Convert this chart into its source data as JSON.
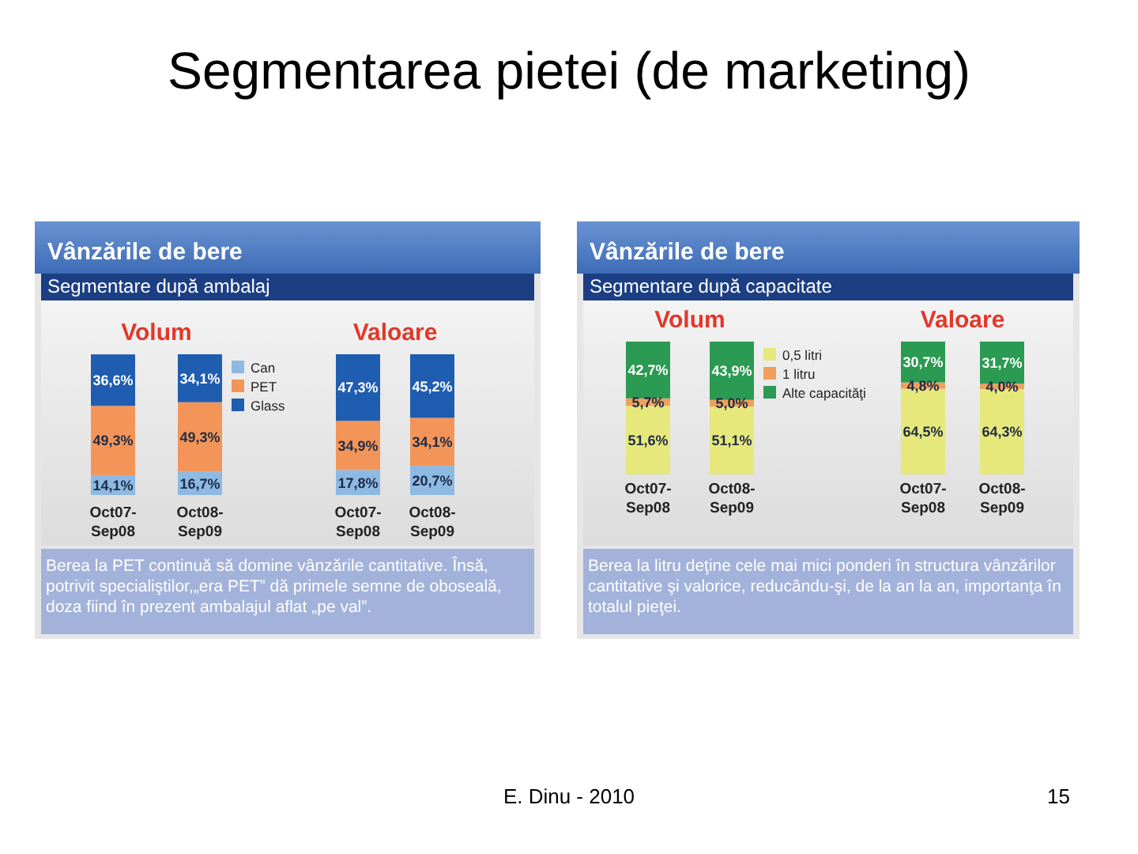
{
  "chart_data": [
    {
      "type": "bar",
      "stacked": true,
      "title": "Volum",
      "categories": [
        "Oct07-Sep08",
        "Oct08-Sep09"
      ],
      "series": [
        {
          "name": "Can",
          "color": "#8db9e3",
          "values": [
            14.1,
            16.7
          ],
          "value_labels": [
            "14,1%",
            "16,7%"
          ]
        },
        {
          "name": "PET",
          "color": "#f39558",
          "values": [
            49.3,
            49.3
          ],
          "value_labels": [
            "49,3%",
            "49,3%"
          ]
        },
        {
          "name": "Glass",
          "color": "#1f5db0",
          "values": [
            36.6,
            34.1
          ],
          "value_labels": [
            "36,6%",
            "34,1%"
          ]
        }
      ],
      "legend": "right",
      "tick_labels": "x",
      "annotations": [
        "Segmentarea pietei (de marketing)",
        "Vânzările de bere",
        "Segmentare după ambalaj"
      ]
    },
    {
      "type": "bar",
      "stacked": true,
      "title": "Valoare",
      "categories": [
        "Oct07-Sep08",
        "Oct08-Sep09"
      ],
      "series": [
        {
          "color": "#8db9e3",
          "values": [
            17.8,
            20.7
          ],
          "value_labels": [
            "17,8%",
            "20,7%"
          ]
        },
        {
          "color": "#f39558",
          "values": [
            34.9,
            34.1
          ],
          "value_labels": [
            "34,9%",
            "34,1%"
          ]
        },
        {
          "color": "#1f5db0",
          "values": [
            47.3,
            45.2
          ],
          "value_labels": [
            "47,3%",
            "45,2%"
          ]
        }
      ],
      "tick_labels": "x",
      "annotations": [
        "Berea la PET continuă să domine vânzările cantitative. Însă, potrivit specialiştilor,„era PET” dă primele semne de oboseală, doza fiind în prezent ambalajul aflat „pe val”."
      ]
    },
    {
      "type": "bar",
      "stacked": true,
      "title": "Volum",
      "categories": [
        "Oct07-Sep08",
        "Oct08-Sep09"
      ],
      "series": [
        {
          "name": "0,5 litri",
          "color": "#e6e87c",
          "values": [
            51.6,
            51.1
          ],
          "value_labels": [
            "51,6%",
            "51,1%"
          ]
        },
        {
          "name": "1 litru",
          "color": "#f0a05c",
          "values": [
            5.7,
            5.0
          ],
          "value_labels": [
            "5,7%",
            "5,0%"
          ]
        },
        {
          "name": "Alte capacităţi",
          "color": "#2b9a52",
          "values": [
            42.7,
            43.9
          ],
          "value_labels": [
            "42,7%",
            "43,9%"
          ]
        }
      ],
      "legend": "right",
      "tick_labels": "x",
      "annotations": [
        "Vânzările de bere",
        "Segmentare după capacitate"
      ]
    },
    {
      "type": "bar",
      "stacked": true,
      "title": "Valoare",
      "categories": [
        "Oct07-Sep08",
        "Oct08-Sep09"
      ],
      "series": [
        {
          "color": "#e6e87c",
          "values": [
            64.5,
            64.3
          ],
          "value_labels": [
            "64,5%",
            "64,3%"
          ]
        },
        {
          "color": "#f0a05c",
          "values": [
            4.8,
            4.0
          ],
          "value_labels": [
            "4,8%",
            "4,0%"
          ]
        },
        {
          "color": "#2b9a52",
          "values": [
            30.7,
            31.7
          ],
          "value_labels": [
            "30,7%",
            "31,7%"
          ]
        }
      ],
      "tick_labels": "x",
      "annotations": [
        "Berea la litru deţine cele mai mici ponderi în structura vânzărilor cantitative şi valorice, reducându-şi, de la an la an, importanţa în totalul pieţei.",
        "E. Dinu - 2010",
        "15"
      ]
    }
  ]
}
